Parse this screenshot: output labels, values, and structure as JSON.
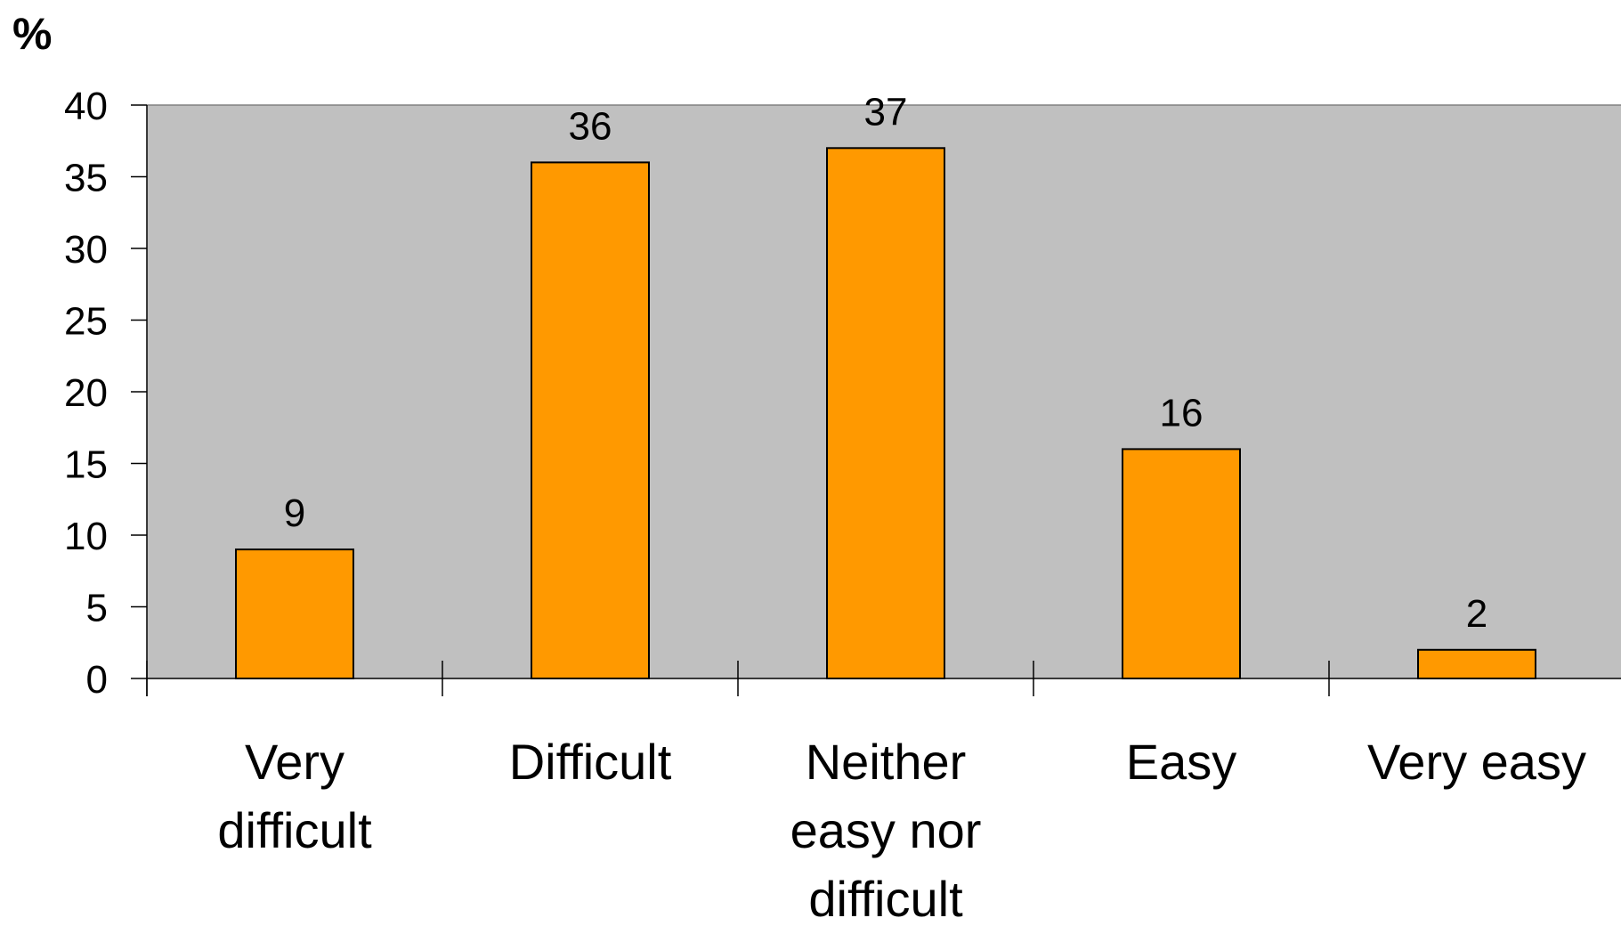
{
  "chart_data": {
    "type": "bar",
    "ylabel": "%",
    "categories": [
      [
        "Very",
        "difficult"
      ],
      [
        "Difficult"
      ],
      [
        "Neither",
        "easy nor",
        "difficult"
      ],
      [
        "Easy"
      ],
      [
        "Very easy"
      ]
    ],
    "values": [
      9,
      36,
      37,
      16,
      2
    ],
    "data_labels": [
      "9",
      "36",
      "37",
      "16",
      "2"
    ],
    "ylim": [
      0,
      40
    ],
    "yticks": [
      0,
      5,
      10,
      15,
      20,
      25,
      30,
      35,
      40
    ],
    "grid": false,
    "legend": "none",
    "colors": {
      "bar_fill": "#FF9900",
      "bar_stroke": "#000000",
      "plot_background": "#C0C0C0",
      "axis": "#000000"
    }
  }
}
